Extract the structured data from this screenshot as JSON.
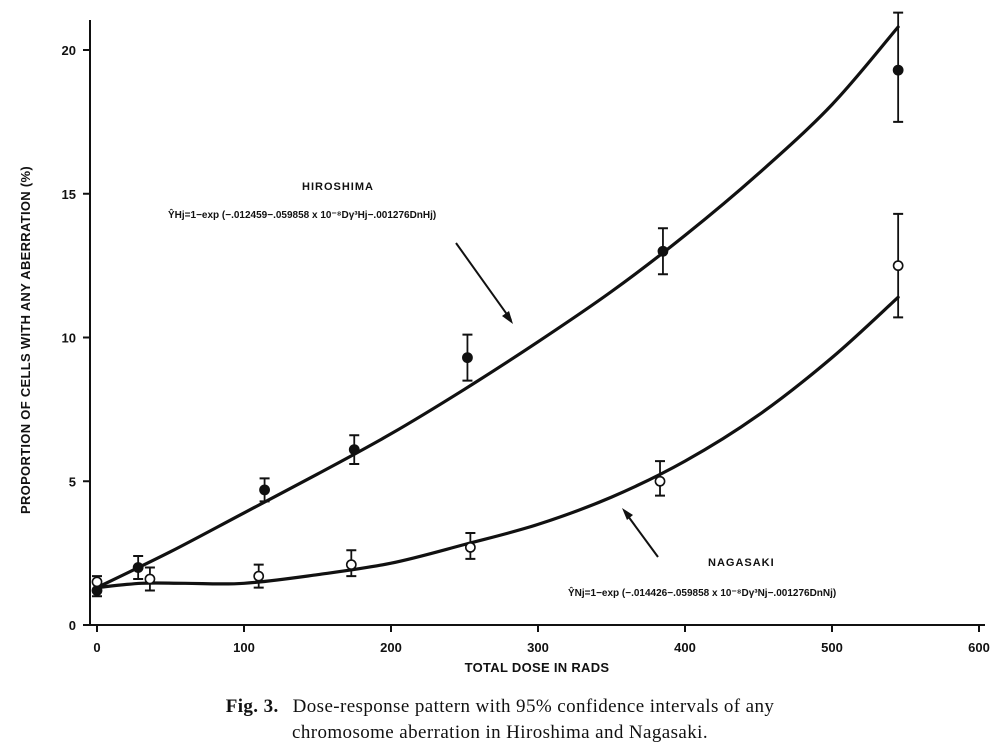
{
  "chart_data": {
    "type": "scatter",
    "xlabel": "TOTAL DOSE IN RADS",
    "ylabel": "PROPORTION OF CELLS WITH ANY ABERRATION (%)",
    "xlim": [
      0,
      600
    ],
    "ylim": [
      0,
      21.5
    ],
    "x_ticks": [
      0,
      100,
      200,
      300,
      400,
      500,
      600
    ],
    "y_ticks": [
      0,
      5,
      10,
      15,
      20
    ],
    "grid": false,
    "series": [
      {
        "name": "HIROSHIMA",
        "marker": "filled-circle",
        "points": [
          {
            "x": 0,
            "y": 1.2,
            "low": 1.0,
            "high": 1.5
          },
          {
            "x": 28,
            "y": 2.0,
            "low": 1.6,
            "high": 2.4
          },
          {
            "x": 114,
            "y": 4.7,
            "low": 4.3,
            "high": 5.1
          },
          {
            "x": 175,
            "y": 6.1,
            "low": 5.6,
            "high": 6.6
          },
          {
            "x": 252,
            "y": 9.3,
            "low": 8.5,
            "high": 10.1
          },
          {
            "x": 385,
            "y": 13.0,
            "low": 12.2,
            "high": 13.8
          },
          {
            "x": 545,
            "y": 19.3,
            "low": 17.5,
            "high": 21.3
          }
        ],
        "fit_curve": [
          [
            0,
            1.3
          ],
          [
            50,
            2.55
          ],
          [
            100,
            3.9
          ],
          [
            150,
            5.25
          ],
          [
            200,
            6.65
          ],
          [
            250,
            8.2
          ],
          [
            300,
            9.85
          ],
          [
            350,
            11.6
          ],
          [
            400,
            13.55
          ],
          [
            450,
            15.7
          ],
          [
            500,
            18.1
          ],
          [
            545,
            20.8
          ]
        ],
        "annotation": {
          "title": "HIROSHIMA",
          "equation": "ŶHj=1−exp (−.012459−.059858 x 10⁻⁸Dγ³Hj−.001276DnHj)"
        }
      },
      {
        "name": "NAGASAKI",
        "marker": "open-circle",
        "points": [
          {
            "x": 0,
            "y": 1.5,
            "low": 1.2,
            "high": 1.7
          },
          {
            "x": 36,
            "y": 1.6,
            "low": 1.2,
            "high": 2.0
          },
          {
            "x": 110,
            "y": 1.7,
            "low": 1.3,
            "high": 2.1
          },
          {
            "x": 173,
            "y": 2.1,
            "low": 1.7,
            "high": 2.6
          },
          {
            "x": 254,
            "y": 2.7,
            "low": 2.3,
            "high": 3.2
          },
          {
            "x": 383,
            "y": 5.0,
            "low": 4.5,
            "high": 5.7
          },
          {
            "x": 545,
            "y": 12.5,
            "low": 10.7,
            "high": 14.3
          }
        ],
        "fit_curve": [
          [
            0,
            1.3
          ],
          [
            30,
            1.45
          ],
          [
            60,
            1.45
          ],
          [
            100,
            1.45
          ],
          [
            150,
            1.75
          ],
          [
            200,
            2.15
          ],
          [
            250,
            2.8
          ],
          [
            300,
            3.5
          ],
          [
            350,
            4.45
          ],
          [
            400,
            5.7
          ],
          [
            450,
            7.3
          ],
          [
            500,
            9.3
          ],
          [
            545,
            11.4
          ]
        ],
        "annotation": {
          "title": "NAGASAKI",
          "equation": "ŶNj=1−exp (−.014426−.059858 x 10⁻⁸Dγ³Nj−.001276DnNj)"
        }
      }
    ]
  },
  "caption": {
    "number": "Fig. 3.",
    "line1": "Dose-response pattern with 95% confidence intervals of any",
    "line2": "chromosome aberration in Hiroshima and Nagasaki."
  }
}
